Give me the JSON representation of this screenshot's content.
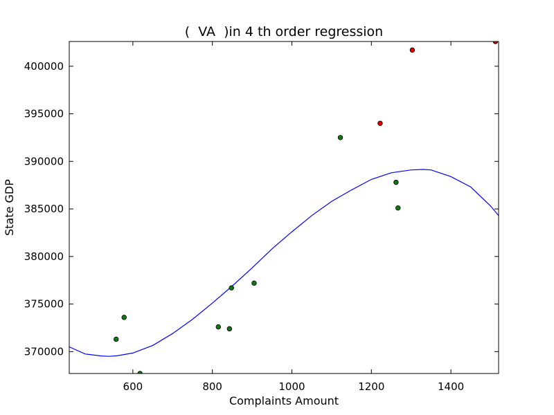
{
  "chart_data": {
    "type": "scatter",
    "title": "(  VA  )in 4 th order regression",
    "xlabel": "Complaints Amount",
    "ylabel": "State GDP",
    "xlim": [
      440,
      1520
    ],
    "ylim": [
      367700,
      402600
    ],
    "x_ticks": [
      600,
      800,
      1000,
      1200,
      1400
    ],
    "y_ticks": [
      370000,
      375000,
      380000,
      385000,
      390000,
      395000,
      400000
    ],
    "grid": false,
    "legend": "none",
    "colors": {
      "points_green": "#117711",
      "points_red": "#dd0000",
      "curve": "#0000ff"
    },
    "points": [
      {
        "x": 558,
        "y": 371300,
        "color": "green"
      },
      {
        "x": 578,
        "y": 373600,
        "color": "green"
      },
      {
        "x": 618,
        "y": 367700,
        "color": "green"
      },
      {
        "x": 815,
        "y": 372600,
        "color": "green"
      },
      {
        "x": 843,
        "y": 372400,
        "color": "green"
      },
      {
        "x": 848,
        "y": 376700,
        "color": "green"
      },
      {
        "x": 905,
        "y": 377200,
        "color": "green"
      },
      {
        "x": 1122,
        "y": 392500,
        "color": "green"
      },
      {
        "x": 1222,
        "y": 394000,
        "color": "red"
      },
      {
        "x": 1262,
        "y": 387800,
        "color": "green"
      },
      {
        "x": 1267,
        "y": 385100,
        "color": "green"
      },
      {
        "x": 1303,
        "y": 401700,
        "color": "red"
      },
      {
        "x": 1512,
        "y": 402600,
        "color": "red"
      }
    ],
    "regression_curve": {
      "name": "4th order regression",
      "x": [
        440,
        480,
        520,
        540,
        560,
        600,
        650,
        700,
        750,
        800,
        850,
        900,
        950,
        1000,
        1050,
        1100,
        1150,
        1200,
        1250,
        1300,
        1330,
        1350,
        1400,
        1450,
        1500,
        1520
      ],
      "y": [
        370500,
        369750,
        369550,
        369500,
        369560,
        369850,
        370650,
        371900,
        373400,
        375100,
        376900,
        378800,
        380800,
        382600,
        384300,
        385800,
        387000,
        388100,
        388800,
        389100,
        389150,
        389100,
        388400,
        387300,
        385300,
        384300
      ]
    }
  }
}
